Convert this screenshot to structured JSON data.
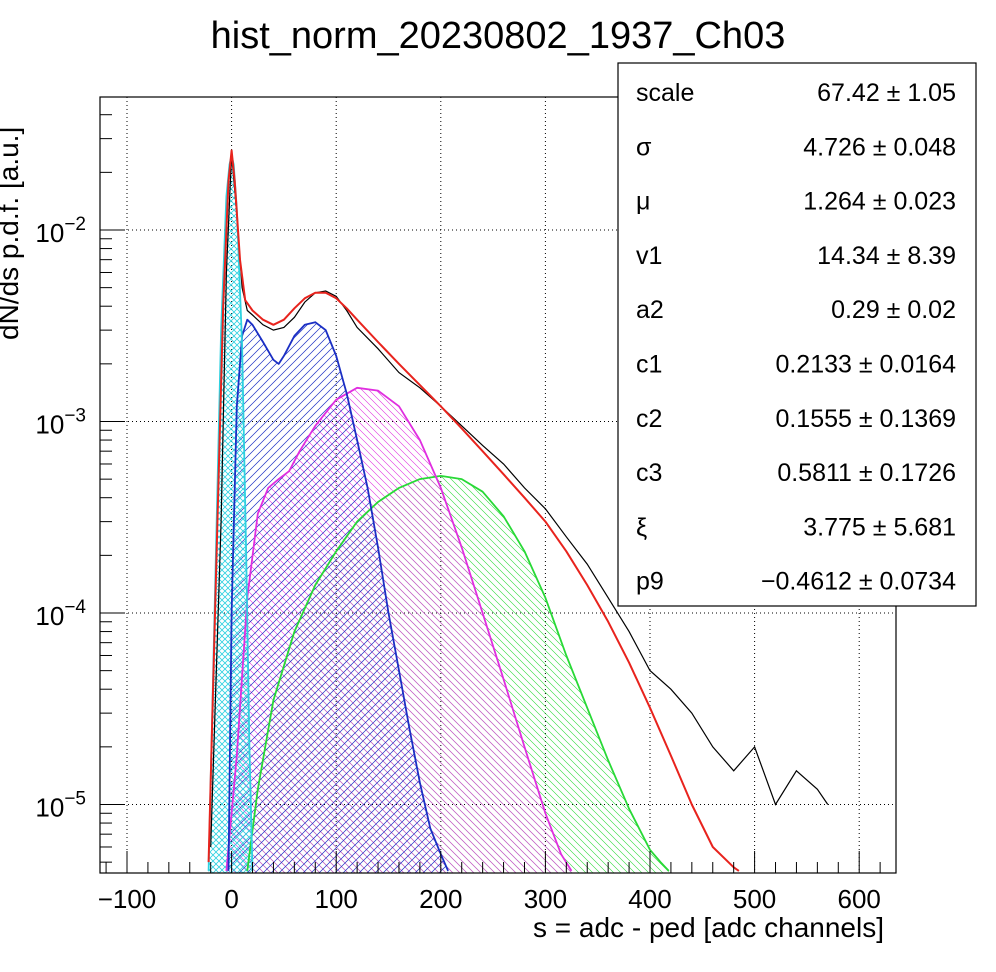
{
  "chart_data": {
    "type": "line",
    "title": "hist_norm_20230802_1937_Ch03",
    "xlabel": "s = adc - ped [adc channels]",
    "ylabel": "dN/ds p.d.f. [a.u.]",
    "xlim": [
      -120,
      635
    ],
    "ylim": [
      4.5e-06,
      0.05
    ],
    "yscale": "log",
    "grid": true,
    "x_ticks": [
      -100,
      0,
      100,
      200,
      300,
      400,
      500,
      600
    ],
    "x_tick_labels": [
      "−100",
      "0",
      "100",
      "200",
      "300",
      "400",
      "500",
      "600"
    ],
    "y_ticks": [
      1e-05,
      0.0001,
      0.001,
      0.01
    ],
    "y_tick_labels": [
      {
        "base": "10",
        "exp": "−5"
      },
      {
        "base": "10",
        "exp": "−4"
      },
      {
        "base": "10",
        "exp": "−3"
      },
      {
        "base": "10",
        "exp": "−2"
      }
    ],
    "series": [
      {
        "color": "#000000",
        "style": "histogram",
        "x": [
          -20,
          -10,
          -5,
          0,
          5,
          10,
          15,
          20,
          30,
          40,
          50,
          60,
          70,
          80,
          90,
          100,
          110,
          120,
          140,
          160,
          180,
          200,
          220,
          240,
          260,
          280,
          300,
          320,
          340,
          360,
          380,
          400,
          420,
          440,
          460,
          480,
          500,
          520,
          540,
          560,
          570
        ],
        "y": [
          6e-06,
          0.0003,
          0.006,
          0.025,
          0.012,
          0.005,
          0.0038,
          0.0036,
          0.0032,
          0.003,
          0.0031,
          0.0035,
          0.0042,
          0.0047,
          0.0048,
          0.0045,
          0.0038,
          0.0031,
          0.0024,
          0.0018,
          0.0015,
          0.0012,
          0.00095,
          0.00075,
          0.0006,
          0.00045,
          0.00035,
          0.00025,
          0.00018,
          0.00012,
          8e-05,
          5e-05,
          4e-05,
          3e-05,
          2e-05,
          1.5e-05,
          2e-05,
          1e-05,
          1.5e-05,
          1.2e-05,
          1e-05
        ]
      },
      {
        "color": "#e8231d",
        "style": "line",
        "x": [
          -22,
          -15,
          -8,
          -3,
          0,
          3,
          8,
          13,
          20,
          30,
          40,
          50,
          60,
          70,
          80,
          90,
          100,
          110,
          120,
          140,
          160,
          180,
          200,
          220,
          240,
          260,
          280,
          300,
          320,
          340,
          360,
          380,
          400,
          420,
          440,
          460,
          480,
          485
        ],
        "y": [
          5e-06,
          0.00015,
          0.004,
          0.018,
          0.026,
          0.018,
          0.007,
          0.0043,
          0.0038,
          0.0034,
          0.0032,
          0.0034,
          0.0039,
          0.0044,
          0.0047,
          0.0047,
          0.0044,
          0.0039,
          0.0034,
          0.0026,
          0.002,
          0.00155,
          0.0012,
          0.00092,
          0.0007,
          0.00053,
          0.0004,
          0.0003,
          0.00021,
          0.00014,
          9e-05,
          5.5e-05,
          3.2e-05,
          1.8e-05,
          1e-05,
          6e-06,
          4.7e-06,
          4.5e-06
        ]
      },
      {
        "color": "#2ed1e0",
        "style": "filled",
        "hatch": "cross",
        "x": [
          -22,
          -16,
          -10,
          -5,
          -2,
          0,
          2,
          5,
          10,
          14,
          17,
          20
        ],
        "y": [
          4.5e-06,
          0.00012,
          0.003,
          0.015,
          0.022,
          0.0245,
          0.022,
          0.013,
          0.0025,
          0.0002,
          2e-05,
          4.5e-06
        ]
      },
      {
        "color": "#1b2fc4",
        "style": "filled",
        "hatch": "diag-right",
        "x": [
          -3,
          0,
          5,
          10,
          15,
          20,
          30,
          40,
          45,
          50,
          60,
          70,
          80,
          90,
          100,
          110,
          120,
          130,
          140,
          150,
          160,
          170,
          180,
          190,
          200,
          207
        ],
        "y": [
          4.5e-06,
          0.0001,
          0.0012,
          0.0028,
          0.0034,
          0.0032,
          0.0026,
          0.0021,
          0.002,
          0.0022,
          0.0028,
          0.0032,
          0.0033,
          0.003,
          0.0022,
          0.0014,
          0.0008,
          0.00045,
          0.00022,
          0.0001,
          5e-05,
          2.5e-05,
          1.3e-05,
          7.5e-06,
          5.5e-06,
          4.5e-06
        ]
      },
      {
        "color": "#e02ee0",
        "style": "filled",
        "hatch": "diag-left",
        "x": [
          -5,
          5,
          15,
          25,
          35,
          45,
          55,
          65,
          80,
          100,
          120,
          140,
          160,
          180,
          200,
          220,
          240,
          260,
          280,
          300,
          315,
          325
        ],
        "y": [
          4.5e-06,
          1.8e-05,
          0.00012,
          0.00033,
          0.00045,
          0.0005,
          0.00055,
          0.0007,
          0.00095,
          0.0013,
          0.0015,
          0.00145,
          0.0012,
          0.0008,
          0.00045,
          0.00022,
          0.0001,
          4.5e-05,
          2e-05,
          9e-06,
          5.5e-06,
          4.5e-06
        ]
      },
      {
        "color": "#28d936",
        "style": "filled",
        "hatch": "diag-left",
        "x": [
          15,
          25,
          40,
          60,
          80,
          100,
          120,
          140,
          160,
          180,
          200,
          220,
          240,
          260,
          280,
          300,
          320,
          340,
          360,
          380,
          400,
          410,
          418
        ],
        "y": [
          4.5e-06,
          1.2e-05,
          3.5e-05,
          8e-05,
          0.00014,
          0.00021,
          0.0003,
          0.00038,
          0.00045,
          0.0005,
          0.00052,
          0.0005,
          0.00043,
          0.00032,
          0.00021,
          0.00012,
          6e-05,
          3.2e-05,
          1.7e-05,
          9.5e-06,
          5.8e-06,
          5e-06,
          4.5e-06
        ]
      }
    ]
  },
  "stats_box": {
    "rows": [
      {
        "name": "scale",
        "value": "67.42 ± 1.05"
      },
      {
        "name": "σ",
        "value": "4.726 ± 0.048"
      },
      {
        "name": "μ",
        "value": "1.264 ± 0.023"
      },
      {
        "name": "v1",
        "value": "14.34 ± 8.39"
      },
      {
        "name": "a2",
        "value": "0.29 ± 0.02"
      },
      {
        "name": "c1",
        "value": "0.2133 ± 0.0164"
      },
      {
        "name": "c2",
        "value": "0.1555 ± 0.1369"
      },
      {
        "name": "c3",
        "value": "0.5811 ± 0.1726"
      },
      {
        "name": "ξ",
        "value": "3.775 ± 5.681"
      },
      {
        "name": "p9",
        "value": "−0.4612 ± 0.0734"
      }
    ]
  }
}
